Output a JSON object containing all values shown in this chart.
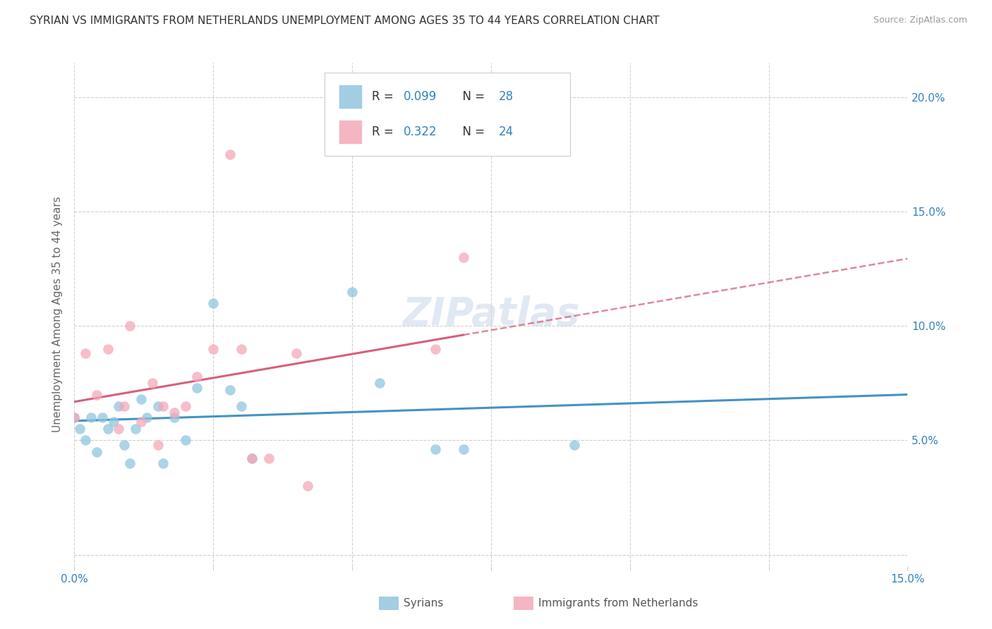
{
  "title": "SYRIAN VS IMMIGRANTS FROM NETHERLANDS UNEMPLOYMENT AMONG AGES 35 TO 44 YEARS CORRELATION CHART",
  "source": "Source: ZipAtlas.com",
  "ylabel": "Unemployment Among Ages 35 to 44 years",
  "xlim": [
    0.0,
    0.15
  ],
  "ylim": [
    -0.005,
    0.215
  ],
  "xticks": [
    0.0,
    0.025,
    0.05,
    0.075,
    0.1,
    0.125,
    0.15
  ],
  "yticks": [
    0.0,
    0.05,
    0.1,
    0.15,
    0.2
  ],
  "blue_color": "#92c5de",
  "pink_color": "#f4a8b8",
  "blue_line_color": "#4393c3",
  "pink_line_color": "#d6607a",
  "watermark": "ZIPatlas",
  "syrians_label": "Syrians",
  "netherlands_label": "Immigrants from Netherlands",
  "syrians_x": [
    0.0,
    0.001,
    0.002,
    0.003,
    0.004,
    0.005,
    0.006,
    0.007,
    0.008,
    0.009,
    0.01,
    0.011,
    0.012,
    0.013,
    0.015,
    0.016,
    0.018,
    0.02,
    0.022,
    0.025,
    0.028,
    0.03,
    0.032,
    0.05,
    0.055,
    0.065,
    0.07,
    0.09
  ],
  "syrians_y": [
    0.06,
    0.055,
    0.05,
    0.06,
    0.045,
    0.06,
    0.055,
    0.058,
    0.065,
    0.048,
    0.04,
    0.055,
    0.068,
    0.06,
    0.065,
    0.04,
    0.06,
    0.05,
    0.073,
    0.11,
    0.072,
    0.065,
    0.042,
    0.115,
    0.075,
    0.046,
    0.046,
    0.048
  ],
  "netherlands_x": [
    0.0,
    0.002,
    0.004,
    0.006,
    0.008,
    0.009,
    0.01,
    0.012,
    0.014,
    0.015,
    0.016,
    0.018,
    0.02,
    0.022,
    0.025,
    0.028,
    0.03,
    0.032,
    0.035,
    0.04,
    0.042,
    0.065,
    0.07
  ],
  "netherlands_y": [
    0.06,
    0.088,
    0.07,
    0.09,
    0.055,
    0.065,
    0.1,
    0.058,
    0.075,
    0.048,
    0.065,
    0.062,
    0.065,
    0.078,
    0.09,
    0.175,
    0.09,
    0.042,
    0.042,
    0.088,
    0.03,
    0.09,
    0.13
  ]
}
